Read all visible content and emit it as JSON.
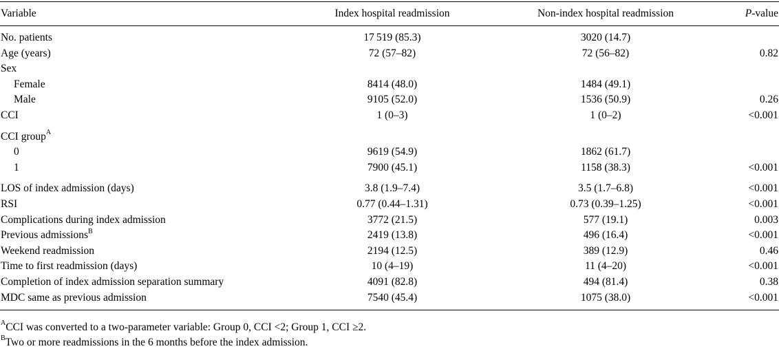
{
  "header": {
    "variable": "Variable",
    "index": "Index hospital readmission",
    "nonindex": "Non-index hospital readmission",
    "p_prefix": "P",
    "p_suffix": "-value"
  },
  "rows": [
    {
      "label": "No. patients",
      "index": "17 519 (85.3)",
      "nonindex": "3020 (14.7)",
      "p": ""
    },
    {
      "label": "Age (years)",
      "index": "72 (57–82)",
      "nonindex": "72 (56–82)",
      "p": "0.82"
    },
    {
      "label": "Sex",
      "index": "",
      "nonindex": "",
      "p": ""
    },
    {
      "label": "Female",
      "index": "8414 (48.0)",
      "nonindex": "1484 (49.1)",
      "p": ""
    },
    {
      "label": "Male",
      "index": "9105 (52.0)",
      "nonindex": "1536 (50.9)",
      "p": "0.26"
    },
    {
      "label": "CCI",
      "index": "1 (0–3)",
      "nonindex": "1 (0–2)",
      "p": "<0.001"
    },
    {
      "label": "CCI group",
      "sup": "A",
      "index": "",
      "nonindex": "",
      "p": ""
    },
    {
      "label": "0",
      "index": "9619 (54.9)",
      "nonindex": "1862 (61.7)",
      "p": ""
    },
    {
      "label": "1",
      "index": "7900 (45.1)",
      "nonindex": "1158 (38.3)",
      "p": "<0.001"
    },
    {
      "label": "LOS of index admission (days)",
      "index": "3.8 (1.9–7.4)",
      "nonindex": "3.5 (1.7–6.8)",
      "p": "<0.001"
    },
    {
      "label": "RSI",
      "index": "0.77 (0.44–1.31)",
      "nonindex": "0.73 (0.39–1.25)",
      "p": "<0.001"
    },
    {
      "label": "Complications during index admission",
      "index": "3772 (21.5)",
      "nonindex": "577 (19.1)",
      "p": "0.003"
    },
    {
      "label": "Previous admissions",
      "sup": "B",
      "index": "2419 (13.8)",
      "nonindex": "496 (16.4)",
      "p": "<0.001"
    },
    {
      "label": "Weekend readmission",
      "index": "2194 (12.5)",
      "nonindex": "389 (12.9)",
      "p": "0.46"
    },
    {
      "label": "Time to first readmission (days)",
      "index": "10 (4–19)",
      "nonindex": "11 (4–20)",
      "p": "<0.001"
    },
    {
      "label": "Completion of index admission separation summary",
      "index": "4091 (82.8)",
      "nonindex": "494 (81.4)",
      "p": "0.38"
    },
    {
      "label": "MDC same as previous admission",
      "index": "7540 (45.4)",
      "nonindex": "1075 (38.0)",
      "p": "<0.001"
    }
  ],
  "footnotes": [
    {
      "mark": "A",
      "text": "CCI was converted to a two-parameter variable: Group 0, CCI <2; Group 1, CCI ≥2."
    },
    {
      "mark": "B",
      "text": "Two or more readmissions in the 6 months before the index admission."
    }
  ]
}
